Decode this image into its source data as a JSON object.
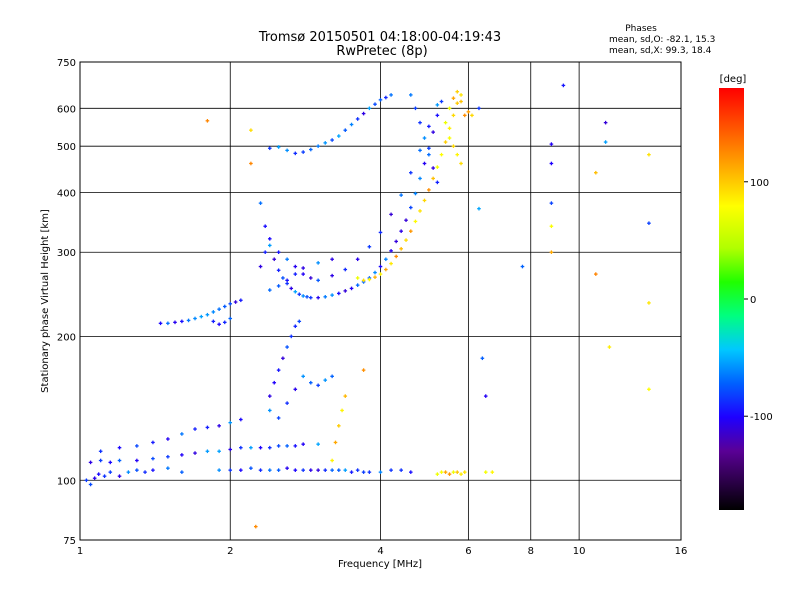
{
  "header": {
    "title_line1": "Tromsø 20150501 04:18:00-04:19:43",
    "title_line2": "RwPretec (8p)"
  },
  "phase_box": {
    "heading": "Phases",
    "line_o": "mean, sd,O: -82.1, 15.3",
    "line_x": "mean, sd,X:  99.3, 18.4"
  },
  "chart_data": {
    "type": "scatter",
    "title": "Tromsø 20150501 04:18:00-04:19:43",
    "subtitle": "RwPretec (8p)",
    "xlabel": "Frequency [MHz]",
    "ylabel": "Stationary phase Virtual Height [km]",
    "x_scale": "log",
    "y_scale": "log",
    "xlim": [
      1,
      16
    ],
    "ylim": [
      75,
      750
    ],
    "x_ticks": [
      1,
      2,
      4,
      6,
      8,
      10,
      16
    ],
    "y_ticks": [
      75,
      100,
      200,
      300,
      400,
      500,
      600,
      750
    ],
    "grid": true,
    "colorbar": {
      "label": "[deg]",
      "range": [
        -180,
        180
      ],
      "ticks": [
        100,
        0,
        -100
      ]
    },
    "series": [
      {
        "name": "O",
        "phase_mean": -82.1,
        "points": [
          [
            1.03,
            100
          ],
          [
            1.05,
            98
          ],
          [
            1.07,
            101
          ],
          [
            1.09,
            103
          ],
          [
            1.12,
            102
          ],
          [
            1.15,
            104
          ],
          [
            1.2,
            102
          ],
          [
            1.25,
            104
          ],
          [
            1.3,
            105
          ],
          [
            1.35,
            104
          ],
          [
            1.4,
            105
          ],
          [
            1.5,
            106
          ],
          [
            1.6,
            104
          ],
          [
            1.05,
            109
          ],
          [
            1.1,
            110
          ],
          [
            1.15,
            109
          ],
          [
            1.2,
            110
          ],
          [
            1.3,
            110
          ],
          [
            1.4,
            111
          ],
          [
            1.5,
            112
          ],
          [
            1.6,
            113
          ],
          [
            1.7,
            114
          ],
          [
            1.8,
            115
          ],
          [
            1.9,
            115
          ],
          [
            2.0,
            116
          ],
          [
            2.1,
            117
          ],
          [
            2.2,
            117
          ],
          [
            2.3,
            117
          ],
          [
            2.4,
            117
          ],
          [
            2.5,
            118
          ],
          [
            2.6,
            118
          ],
          [
            2.7,
            118
          ],
          [
            2.8,
            119
          ],
          [
            3.0,
            119
          ],
          [
            1.1,
            115
          ],
          [
            1.2,
            117
          ],
          [
            1.3,
            118
          ],
          [
            1.4,
            120
          ],
          [
            1.5,
            122
          ],
          [
            1.6,
            125
          ],
          [
            1.7,
            128
          ],
          [
            1.8,
            129
          ],
          [
            1.9,
            130
          ],
          [
            2.0,
            132
          ],
          [
            2.1,
            134
          ],
          [
            1.9,
            105
          ],
          [
            2.0,
            105
          ],
          [
            2.1,
            105
          ],
          [
            2.2,
            106
          ],
          [
            2.3,
            105
          ],
          [
            2.4,
            105
          ],
          [
            2.5,
            105
          ],
          [
            2.6,
            106
          ],
          [
            2.7,
            105
          ],
          [
            2.8,
            105
          ],
          [
            2.9,
            105
          ],
          [
            3.0,
            105
          ],
          [
            3.1,
            105
          ],
          [
            3.2,
            105
          ],
          [
            3.3,
            105
          ],
          [
            3.4,
            105
          ],
          [
            3.5,
            104
          ],
          [
            3.6,
            105
          ],
          [
            3.7,
            104
          ],
          [
            3.8,
            104
          ],
          [
            4.0,
            104
          ],
          [
            4.2,
            105
          ],
          [
            4.4,
            105
          ],
          [
            4.6,
            104
          ],
          [
            1.45,
            213
          ],
          [
            1.5,
            213
          ],
          [
            1.55,
            214
          ],
          [
            1.6,
            215
          ],
          [
            1.65,
            216
          ],
          [
            1.7,
            218
          ],
          [
            1.75,
            220
          ],
          [
            1.8,
            222
          ],
          [
            1.85,
            225
          ],
          [
            1.9,
            228
          ],
          [
            1.95,
            231
          ],
          [
            2.0,
            234
          ],
          [
            2.05,
            236
          ],
          [
            2.1,
            238
          ],
          [
            1.85,
            215
          ],
          [
            1.9,
            212
          ],
          [
            1.95,
            214
          ],
          [
            2.0,
            218
          ],
          [
            2.3,
            380
          ],
          [
            2.35,
            340
          ],
          [
            2.4,
            310
          ],
          [
            2.45,
            290
          ],
          [
            2.5,
            275
          ],
          [
            2.55,
            265
          ],
          [
            2.6,
            258
          ],
          [
            2.65,
            252
          ],
          [
            2.7,
            248
          ],
          [
            2.75,
            245
          ],
          [
            2.8,
            243
          ],
          [
            2.85,
            242
          ],
          [
            2.9,
            241
          ],
          [
            3.0,
            241
          ],
          [
            3.1,
            242
          ],
          [
            3.2,
            244
          ],
          [
            3.3,
            246
          ],
          [
            3.4,
            249
          ],
          [
            3.5,
            252
          ],
          [
            3.6,
            256
          ],
          [
            3.7,
            260
          ],
          [
            3.8,
            265
          ],
          [
            3.9,
            272
          ],
          [
            4.0,
            280
          ],
          [
            4.1,
            290
          ],
          [
            4.2,
            302
          ],
          [
            4.3,
            316
          ],
          [
            4.4,
            332
          ],
          [
            4.5,
            350
          ],
          [
            4.6,
            372
          ],
          [
            4.7,
            398
          ],
          [
            4.8,
            428
          ],
          [
            4.9,
            460
          ],
          [
            5.0,
            495
          ],
          [
            5.1,
            535
          ],
          [
            5.2,
            580
          ],
          [
            5.3,
            620
          ],
          [
            2.3,
            280
          ],
          [
            2.35,
            300
          ],
          [
            2.4,
            320
          ],
          [
            2.5,
            300
          ],
          [
            2.6,
            290
          ],
          [
            2.7,
            280
          ],
          [
            2.8,
            270
          ],
          [
            2.9,
            265
          ],
          [
            3.0,
            262
          ],
          [
            3.2,
            268
          ],
          [
            3.4,
            276
          ],
          [
            3.6,
            290
          ],
          [
            3.8,
            308
          ],
          [
            4.0,
            330
          ],
          [
            4.2,
            360
          ],
          [
            4.4,
            395
          ],
          [
            4.6,
            440
          ],
          [
            4.8,
            490
          ],
          [
            5.0,
            550
          ],
          [
            5.2,
            610
          ],
          [
            2.4,
            250
          ],
          [
            2.5,
            255
          ],
          [
            2.6,
            262
          ],
          [
            2.7,
            270
          ],
          [
            2.8,
            278
          ],
          [
            3.0,
            285
          ],
          [
            3.2,
            290
          ],
          [
            2.4,
            150
          ],
          [
            2.45,
            160
          ],
          [
            2.5,
            170
          ],
          [
            2.55,
            180
          ],
          [
            2.6,
            190
          ],
          [
            2.65,
            200
          ],
          [
            2.7,
            210
          ],
          [
            2.75,
            215
          ],
          [
            2.4,
            140
          ],
          [
            2.5,
            135
          ],
          [
            2.6,
            145
          ],
          [
            2.7,
            155
          ],
          [
            2.8,
            165
          ],
          [
            2.9,
            160
          ],
          [
            3.0,
            158
          ],
          [
            3.1,
            162
          ],
          [
            3.2,
            165
          ],
          [
            2.4,
            495
          ],
          [
            2.5,
            498
          ],
          [
            2.6,
            490
          ],
          [
            2.7,
            483
          ],
          [
            2.8,
            486
          ],
          [
            2.9,
            492
          ],
          [
            3.0,
            500
          ],
          [
            3.1,
            508
          ],
          [
            3.2,
            515
          ],
          [
            3.3,
            525
          ],
          [
            3.4,
            540
          ],
          [
            3.5,
            555
          ],
          [
            3.6,
            570
          ],
          [
            3.7,
            585
          ],
          [
            3.8,
            600
          ],
          [
            3.9,
            612
          ],
          [
            4.0,
            625
          ],
          [
            4.1,
            632
          ],
          [
            4.2,
            640
          ],
          [
            4.6,
            640
          ],
          [
            4.7,
            600
          ],
          [
            4.8,
            560
          ],
          [
            4.9,
            520
          ],
          [
            5.0,
            480
          ],
          [
            5.1,
            450
          ],
          [
            5.2,
            420
          ],
          [
            6.3,
            600
          ],
          [
            6.3,
            370
          ],
          [
            6.4,
            180
          ],
          [
            6.5,
            150
          ],
          [
            7.7,
            280
          ],
          [
            8.8,
            505
          ],
          [
            8.8,
            460
          ],
          [
            8.8,
            380
          ],
          [
            9.3,
            670
          ],
          [
            11.3,
            560
          ],
          [
            11.3,
            510
          ],
          [
            13.8,
            345
          ]
        ]
      },
      {
        "name": "X",
        "phase_mean": 99.3,
        "points": [
          [
            3.6,
            265
          ],
          [
            3.7,
            262
          ],
          [
            3.8,
            263
          ],
          [
            3.9,
            266
          ],
          [
            4.0,
            270
          ],
          [
            4.1,
            276
          ],
          [
            4.2,
            284
          ],
          [
            4.3,
            294
          ],
          [
            4.4,
            305
          ],
          [
            4.5,
            318
          ],
          [
            4.6,
            332
          ],
          [
            4.7,
            348
          ],
          [
            4.8,
            366
          ],
          [
            4.9,
            385
          ],
          [
            5.0,
            405
          ],
          [
            5.1,
            428
          ],
          [
            5.2,
            452
          ],
          [
            5.3,
            480
          ],
          [
            5.4,
            510
          ],
          [
            5.5,
            545
          ],
          [
            5.6,
            580
          ],
          [
            5.7,
            615
          ],
          [
            5.8,
            640
          ],
          [
            5.4,
            560
          ],
          [
            5.5,
            600
          ],
          [
            5.6,
            630
          ],
          [
            5.7,
            650
          ],
          [
            5.8,
            620
          ],
          [
            5.9,
            580
          ],
          [
            5.5,
            520
          ],
          [
            5.6,
            500
          ],
          [
            5.7,
            480
          ],
          [
            5.8,
            460
          ],
          [
            5.2,
            103
          ],
          [
            5.3,
            104
          ],
          [
            5.4,
            104
          ],
          [
            5.5,
            103
          ],
          [
            5.6,
            104
          ],
          [
            5.7,
            104
          ],
          [
            5.8,
            103
          ],
          [
            5.9,
            104
          ],
          [
            3.2,
            110
          ],
          [
            3.25,
            120
          ],
          [
            3.3,
            130
          ],
          [
            3.35,
            140
          ],
          [
            3.4,
            150
          ],
          [
            3.7,
            170
          ],
          [
            1.8,
            565
          ],
          [
            2.2,
            540
          ],
          [
            2.2,
            460
          ],
          [
            6.0,
            590
          ],
          [
            6.1,
            580
          ],
          [
            6.5,
            104
          ],
          [
            6.7,
            104
          ],
          [
            8.8,
            340
          ],
          [
            8.8,
            300
          ],
          [
            10.8,
            440
          ],
          [
            10.8,
            270
          ],
          [
            11.5,
            190
          ],
          [
            13.8,
            480
          ],
          [
            13.8,
            235
          ],
          [
            13.8,
            155
          ],
          [
            2.25,
            80
          ]
        ]
      }
    ]
  }
}
